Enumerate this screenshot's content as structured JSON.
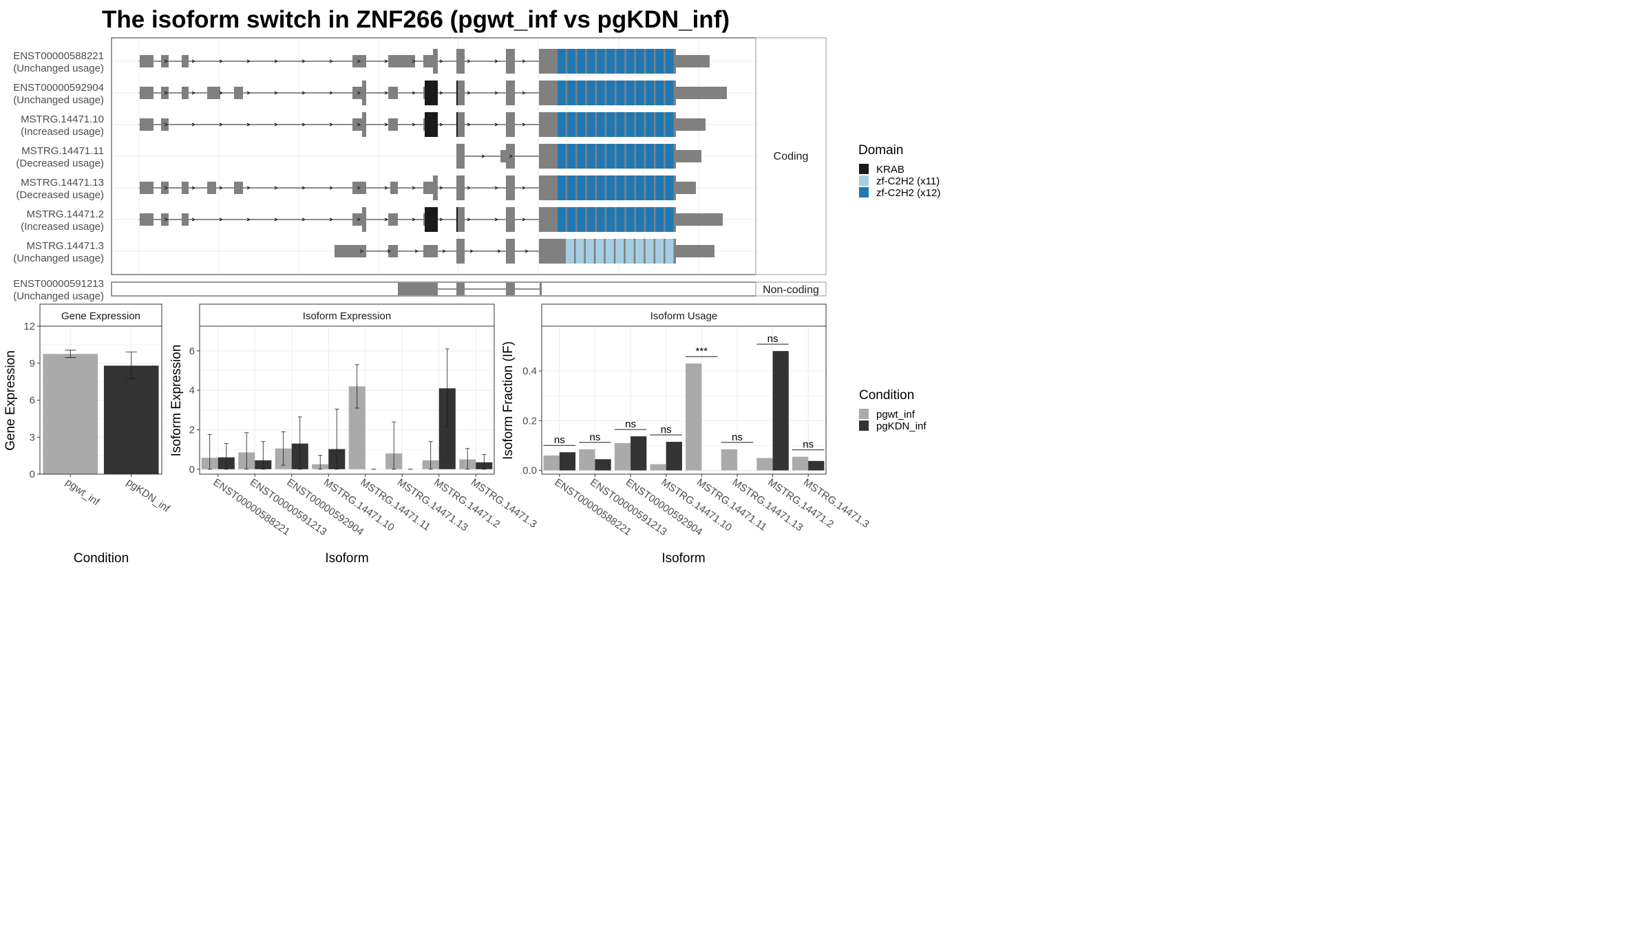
{
  "title": "The isoform switch in ZNF266 (pgwt_inf vs pgKDN_inf)",
  "colors": {
    "exon": "#808080",
    "krab": "#1a1a1a",
    "zf_light": "#a6cee3",
    "zf_dark": "#1f78b4",
    "pgwt_inf": "#aaaaaa",
    "pgKDN_inf": "#333333"
  },
  "transcripts": {
    "facet_coding": "Coding",
    "facet_noncoding": "Non-coding",
    "coding": [
      {
        "id": "ENST00000588221",
        "status": "(Unchanged usage)"
      },
      {
        "id": "ENST00000592904",
        "status": "(Unchanged usage)"
      },
      {
        "id": "MSTRG.14471.10",
        "status": "(Increased usage)"
      },
      {
        "id": "MSTRG.14471.11",
        "status": "(Decreased usage)"
      },
      {
        "id": "MSTRG.14471.13",
        "status": "(Decreased usage)"
      },
      {
        "id": "MSTRG.14471.2",
        "status": "(Increased usage)"
      },
      {
        "id": "MSTRG.14471.3",
        "status": "(Unchanged usage)"
      }
    ],
    "noncoding": [
      {
        "id": "ENST00000591213",
        "status": "(Unchanged usage)"
      }
    ]
  },
  "legend_domain": {
    "title": "Domain",
    "items": [
      {
        "label": "KRAB",
        "color": "#1a1a1a"
      },
      {
        "label": "zf-C2H2 (x11)",
        "color": "#a6cee3"
      },
      {
        "label": "zf-C2H2 (x12)",
        "color": "#1f78b4"
      }
    ]
  },
  "legend_condition": {
    "title": "Condition",
    "items": [
      {
        "label": "pgwt_inf",
        "color": "#aaaaaa"
      },
      {
        "label": "pgKDN_inf",
        "color": "#333333"
      }
    ]
  },
  "chart_data": [
    {
      "type": "bar",
      "title": "Gene Expression",
      "xlabel": "Condition",
      "ylabel": "Gene Expression",
      "categories": [
        "pgwt_inf",
        "pgKDN_inf"
      ],
      "values": [
        9.75,
        8.8
      ],
      "errors": [
        [
          9.45,
          10.05
        ],
        [
          7.75,
          9.9
        ]
      ],
      "ylim": [
        0,
        12
      ],
      "yticks": [
        0,
        3,
        6,
        9,
        12
      ]
    },
    {
      "type": "bar",
      "title": "Isoform Expression",
      "xlabel": "Isoform",
      "ylabel": "Isoform Expression",
      "categories": [
        "ENST00000588221",
        "ENST00000591213",
        "ENST00000592904",
        "MSTRG.14471.10",
        "MSTRG.14471.11",
        "MSTRG.14471.13",
        "MSTRG.14471.2",
        "MSTRG.14471.3"
      ],
      "series": [
        {
          "name": "pgwt_inf",
          "values": [
            0.58,
            0.85,
            1.05,
            0.25,
            4.2,
            0.8,
            0.45,
            0.5
          ],
          "errors": [
            [
              0,
              1.75
            ],
            [
              0,
              1.85
            ],
            [
              0.2,
              1.9
            ],
            [
              0,
              0.7
            ],
            [
              3.1,
              5.3
            ],
            [
              0,
              2.4
            ],
            [
              0,
              1.4
            ],
            [
              0,
              1.05
            ]
          ]
        },
        {
          "name": "pgKDN_inf",
          "values": [
            0.6,
            0.45,
            1.3,
            1.02,
            0,
            0,
            4.1,
            0.35
          ],
          "errors": [
            [
              0,
              1.3
            ],
            [
              0,
              1.4
            ],
            [
              0,
              2.65
            ],
            [
              0,
              3.05
            ],
            [
              0,
              0
            ],
            [
              0,
              0
            ],
            [
              2.15,
              6.1
            ],
            [
              0,
              0.75
            ]
          ]
        }
      ],
      "ylim": [
        -0.25,
        7.25
      ],
      "yticks": [
        0,
        2,
        4,
        6
      ]
    },
    {
      "type": "bar",
      "title": "Isoform Usage",
      "xlabel": "Isoform",
      "ylabel": "Isoform Fraction (IF)",
      "categories": [
        "ENST00000588221",
        "ENST00000591213",
        "ENST00000592904",
        "MSTRG.14471.10",
        "MSTRG.14471.11",
        "MSTRG.14471.13",
        "MSTRG.14471.2",
        "MSTRG.14471.3"
      ],
      "series": [
        {
          "name": "pgwt_inf",
          "values": [
            0.06,
            0.085,
            0.11,
            0.025,
            0.43,
            0.085,
            0.05,
            0.055
          ]
        },
        {
          "name": "pgKDN_inf",
          "values": [
            0.073,
            0.045,
            0.137,
            0.115,
            0,
            0,
            0.48,
            0.038
          ]
        }
      ],
      "significance": [
        "ns",
        "ns",
        "ns",
        "ns",
        "***",
        "ns",
        "ns",
        "ns"
      ],
      "ylim": [
        -0.015,
        0.58
      ],
      "yticks": [
        0.0,
        0.2,
        0.4
      ]
    }
  ]
}
